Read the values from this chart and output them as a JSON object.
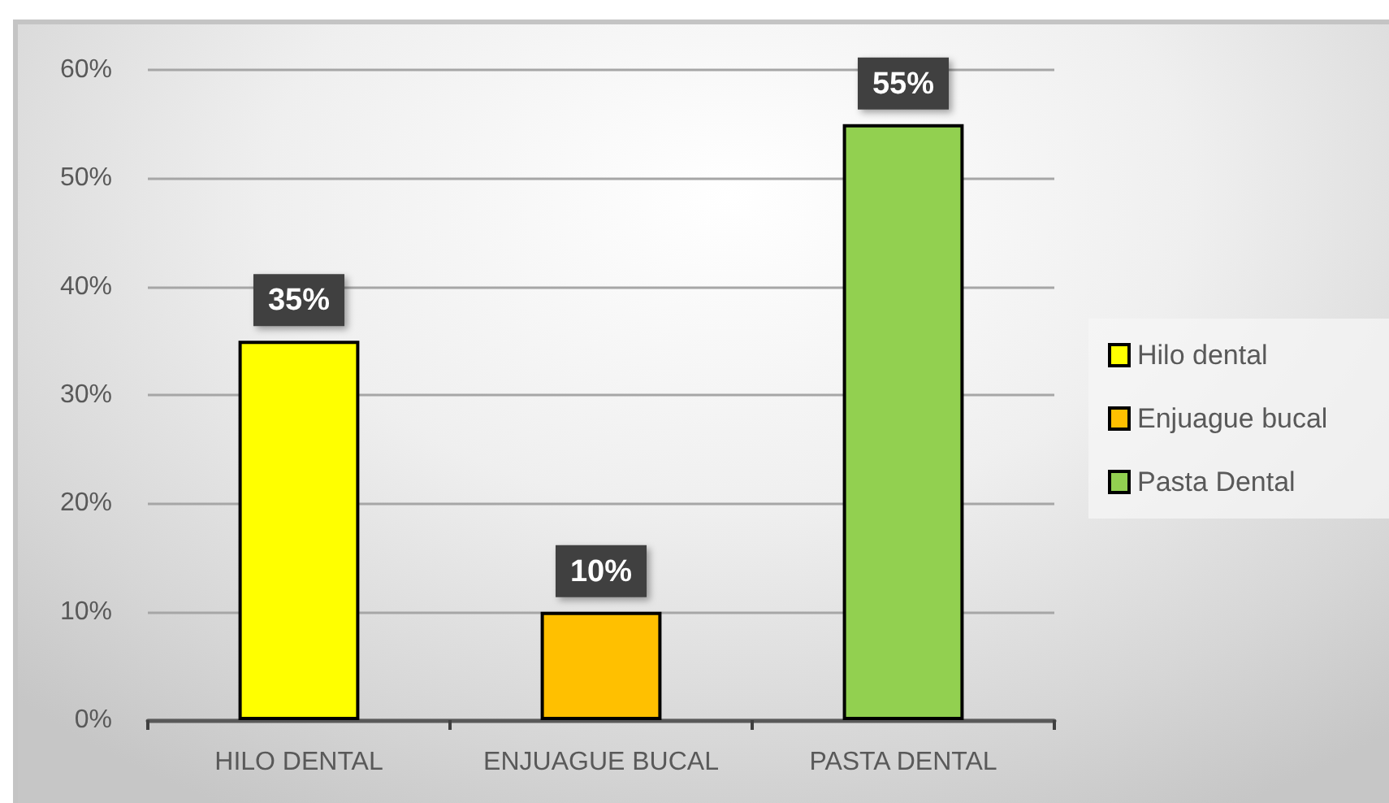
{
  "chart_data": {
    "type": "bar",
    "categories": [
      "HILO DENTAL",
      "ENJUAGUE BUCAL",
      "PASTA DENTAL"
    ],
    "series": [
      {
        "name": "Hilo dental",
        "color": "#ffff00",
        "values": [
          35,
          null,
          null
        ],
        "value_labels": [
          "35%",
          null,
          null
        ]
      },
      {
        "name": "Enjuague bucal",
        "color": "#ffc000",
        "values": [
          null,
          10,
          null
        ],
        "value_labels": [
          null,
          "10%",
          null
        ]
      },
      {
        "name": "Pasta Dental",
        "color": "#92d050",
        "values": [
          null,
          null,
          55
        ],
        "value_labels": [
          null,
          null,
          "55%"
        ]
      }
    ],
    "ylim": [
      0,
      60
    ],
    "yticks": [
      {
        "value": 0,
        "label": "0%"
      },
      {
        "value": 10,
        "label": "10%"
      },
      {
        "value": 20,
        "label": "20%"
      },
      {
        "value": 30,
        "label": "30%"
      },
      {
        "value": 40,
        "label": "40%"
      },
      {
        "value": 50,
        "label": "50%"
      },
      {
        "value": 60,
        "label": "60%"
      }
    ],
    "grid": "y",
    "legend": "right"
  }
}
